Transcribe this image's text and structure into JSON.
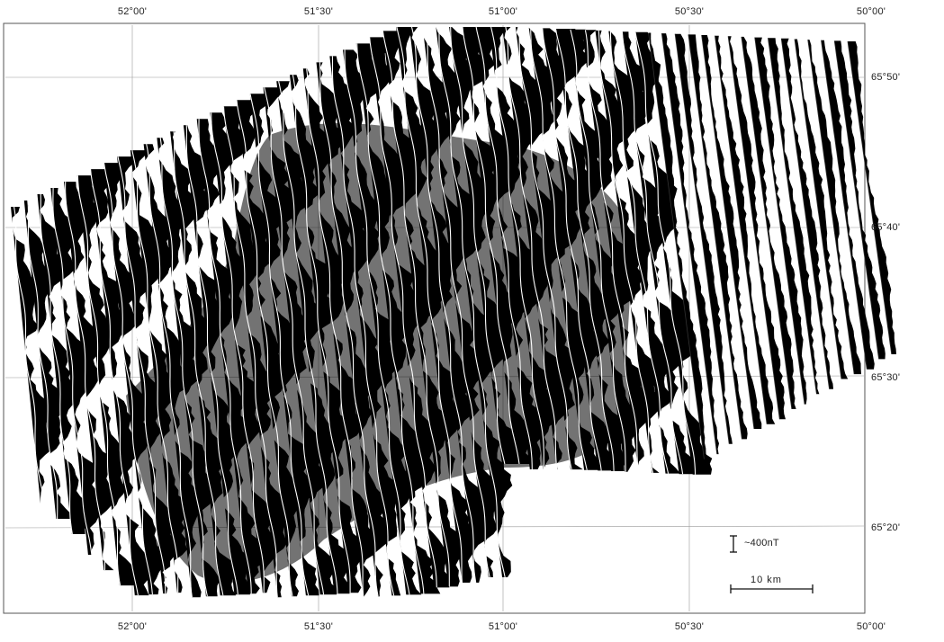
{
  "map": {
    "longitude_labels_top": [
      "52°00'",
      "51°30'",
      "51°00'",
      "50°30'",
      "50°00'"
    ],
    "longitude_labels_bottom": [
      "52°00'",
      "51°30'",
      "51°00'",
      "50°30'",
      "50°00'"
    ],
    "latitude_labels": [
      "65°50'",
      "65°40'",
      "65°30'",
      "65°20'"
    ],
    "amplitude_scale_label": "~400nT",
    "distance_scale_label": "10 km",
    "profile_fill_color": "#000000",
    "profile_trace_color": "#ffffff",
    "background_color": "#ffffff",
    "frame_color": "#555555"
  }
}
